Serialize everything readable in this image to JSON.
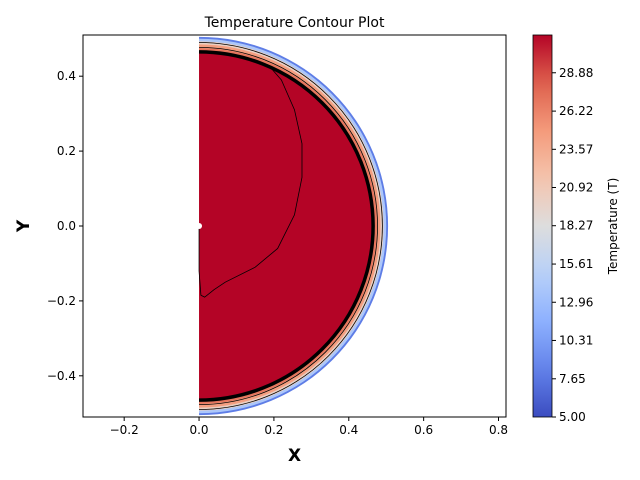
{
  "chart_data": {
    "type": "contour",
    "title": "Temperature Contour Plot",
    "xlabel": "X",
    "ylabel": "Y",
    "xlim": [
      -0.31,
      0.82
    ],
    "ylim": [
      -0.51,
      0.51
    ],
    "x_ticks": [
      -0.2,
      0.0,
      0.2,
      0.4,
      0.6,
      0.8
    ],
    "x_tick_labels": [
      "−0.2",
      "0.0",
      "0.2",
      "0.4",
      "0.6",
      "0.8"
    ],
    "y_ticks": [
      -0.4,
      -0.2,
      0.0,
      0.2,
      0.4
    ],
    "y_tick_labels": [
      "−0.4",
      "−0.2",
      "0.0",
      "0.2",
      "0.4"
    ],
    "domain": {
      "shape": "half-disk",
      "center": [
        0,
        0
      ],
      "radius": 0.505,
      "x_min": 0.0
    },
    "colormap": "coolwarm",
    "colorbar": {
      "label": "Temperature (T)",
      "vmin": 5.0,
      "vmax": 31.5,
      "ticks": [
        5.0,
        7.65,
        10.31,
        12.96,
        15.61,
        18.27,
        20.92,
        23.57,
        26.22,
        28.88
      ],
      "tick_labels": [
        "5.00",
        "7.65",
        "10.31",
        "12.96",
        "15.61",
        "18.27",
        "20.92",
        "23.57",
        "26.22",
        "28.88"
      ]
    },
    "rings": [
      {
        "r": 0.505,
        "T": 8.0
      },
      {
        "r": 0.5,
        "T": 14.0
      },
      {
        "r": 0.493,
        "T": 20.0
      },
      {
        "r": 0.485,
        "T": 24.5
      },
      {
        "r": 0.475,
        "T": 27.0
      },
      {
        "r": 0.468,
        "T": 31.5
      }
    ],
    "contour_lines": [
      {
        "r": 0.49,
        "width": "thin"
      },
      {
        "r": 0.477,
        "width": "thin"
      },
      {
        "r": 0.465,
        "width": "thick"
      }
    ],
    "inner_contour": [
      [
        0.0,
        0.0
      ],
      [
        0.0,
        -0.12
      ],
      [
        0.005,
        -0.185
      ],
      [
        0.015,
        -0.19
      ],
      [
        0.04,
        -0.17
      ],
      [
        0.07,
        -0.15
      ],
      [
        0.15,
        -0.11
      ],
      [
        0.21,
        -0.06
      ],
      [
        0.255,
        0.03
      ],
      [
        0.275,
        0.13
      ],
      [
        0.275,
        0.22
      ],
      [
        0.255,
        0.31
      ],
      [
        0.22,
        0.39
      ],
      [
        0.185,
        0.43
      ]
    ],
    "marker": {
      "x": 0.0,
      "y": 0.0,
      "color": "#ffffff"
    }
  }
}
